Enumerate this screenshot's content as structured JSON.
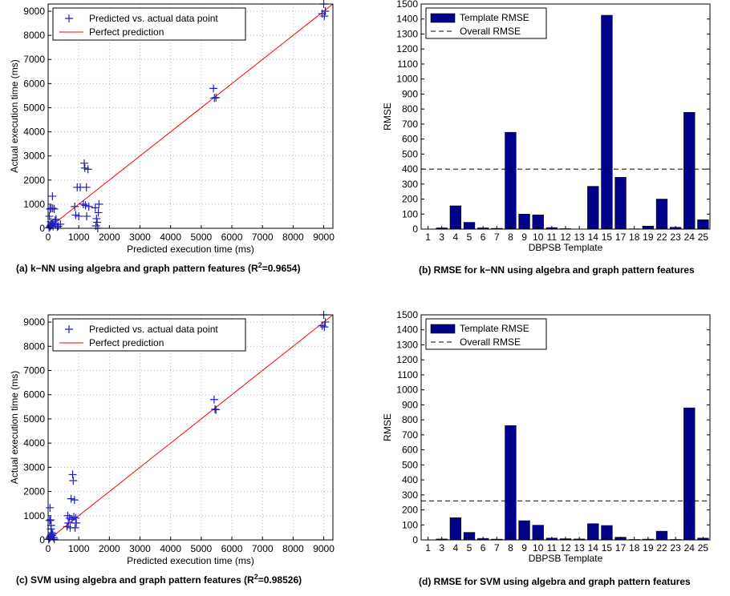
{
  "chart_data": [
    {
      "type": "scatter",
      "caption": "(a) k−NN using algebra and graph pattern features (R",
      "caption_sup": "2",
      "caption_tail": "=0.9654)",
      "xlabel": "Predicted execution time (ms)",
      "ylabel": "Actual execution time (ms)",
      "xlim": [
        0,
        9300
      ],
      "ylim": [
        0,
        9300
      ],
      "xticks": [
        "0",
        "1000",
        "2000",
        "3000",
        "4000",
        "5000",
        "6000",
        "7000",
        "8000",
        "9000"
      ],
      "yticks": [
        "0",
        "1000",
        "2000",
        "3000",
        "4000",
        "5000",
        "6000",
        "7000",
        "8000",
        "9000"
      ],
      "grid": true,
      "legend_position": "top-left",
      "legend": [
        "Predicted vs. actual data point",
        "Perfect prediction"
      ],
      "colors": {
        "points": "#1f1fbf",
        "line": "#ff0000"
      },
      "line": [
        [
          0,
          0
        ],
        [
          9300,
          9300
        ]
      ],
      "points": [
        [
          30,
          20
        ],
        [
          60,
          60
        ],
        [
          80,
          100
        ],
        [
          100,
          130
        ],
        [
          120,
          170
        ],
        [
          150,
          220
        ],
        [
          40,
          500
        ],
        [
          60,
          800
        ],
        [
          100,
          820
        ],
        [
          150,
          830
        ],
        [
          200,
          800
        ],
        [
          140,
          1330
        ],
        [
          90,
          270
        ],
        [
          160,
          80
        ],
        [
          230,
          330
        ],
        [
          300,
          60
        ],
        [
          240,
          150
        ],
        [
          330,
          90
        ],
        [
          400,
          170
        ],
        [
          260,
          380
        ],
        [
          870,
          900
        ],
        [
          900,
          550
        ],
        [
          950,
          1700
        ],
        [
          1000,
          500
        ],
        [
          1050,
          1700
        ],
        [
          1150,
          1000
        ],
        [
          1180,
          2700
        ],
        [
          1200,
          2500
        ],
        [
          1220,
          950
        ],
        [
          1250,
          1700
        ],
        [
          1260,
          500
        ],
        [
          1300,
          2450
        ],
        [
          1330,
          900
        ],
        [
          1540,
          850
        ],
        [
          1560,
          100
        ],
        [
          1580,
          400
        ],
        [
          1600,
          250
        ],
        [
          1620,
          0
        ],
        [
          1640,
          650
        ],
        [
          1660,
          1000
        ],
        [
          5400,
          5800
        ],
        [
          5430,
          5400
        ],
        [
          5480,
          5420
        ],
        [
          8950,
          8900
        ],
        [
          9000,
          9300
        ],
        [
          9020,
          8800
        ],
        [
          9050,
          9000
        ]
      ]
    },
    {
      "type": "bar",
      "caption": "(b) RMSE for k−NN using algebra and graph pattern features",
      "xlabel": "DBPSB Template",
      "ylabel": "RMSE",
      "ylim": [
        0,
        1500
      ],
      "yticks": [
        "0",
        "100",
        "200",
        "300",
        "400",
        "500",
        "600",
        "700",
        "800",
        "900",
        "1000",
        "1100",
        "1200",
        "1300",
        "1400",
        "1500"
      ],
      "categories": [
        "1",
        "3",
        "4",
        "5",
        "6",
        "7",
        "8",
        "9",
        "10",
        "11",
        "12",
        "13",
        "14",
        "15",
        "17",
        "18",
        "19",
        "22",
        "23",
        "24",
        "25"
      ],
      "values": [
        1,
        8,
        155,
        45,
        8,
        5,
        645,
        100,
        95,
        10,
        3,
        1,
        285,
        1425,
        345,
        2,
        20,
        200,
        12,
        778,
        62
      ],
      "overall_rmse": 400,
      "legend_position": "top-left",
      "legend": [
        "Template RMSE",
        "Overall RMSE"
      ],
      "colors": {
        "bar": "#00008b",
        "overall": "#000000"
      }
    },
    {
      "type": "scatter",
      "caption": "(c) SVM using algebra and graph pattern features (R",
      "caption_sup": "2",
      "caption_tail": "=0.98526)",
      "xlabel": "Predicted execution time (ms)",
      "ylabel": "Actual execution time (ms)",
      "xlim": [
        0,
        9300
      ],
      "ylim": [
        0,
        9300
      ],
      "xticks": [
        "0",
        "1000",
        "2000",
        "3000",
        "4000",
        "5000",
        "6000",
        "7000",
        "8000",
        "9000"
      ],
      "yticks": [
        "0",
        "1000",
        "2000",
        "3000",
        "4000",
        "5000",
        "6000",
        "7000",
        "8000",
        "9000"
      ],
      "grid": true,
      "legend_position": "top-left",
      "legend": [
        "Predicted vs. actual data point",
        "Perfect prediction"
      ],
      "colors": {
        "points": "#1f1fbf",
        "line": "#ff0000"
      },
      "line": [
        [
          0,
          0
        ],
        [
          9300,
          9300
        ]
      ],
      "points": [
        [
          20,
          20
        ],
        [
          40,
          60
        ],
        [
          60,
          100
        ],
        [
          80,
          150
        ],
        [
          100,
          200
        ],
        [
          50,
          800
        ],
        [
          80,
          830
        ],
        [
          100,
          600
        ],
        [
          60,
          1330
        ],
        [
          120,
          300
        ],
        [
          150,
          250
        ],
        [
          180,
          100
        ],
        [
          200,
          30
        ],
        [
          90,
          450
        ],
        [
          130,
          180
        ],
        [
          620,
          550
        ],
        [
          640,
          1000
        ],
        [
          660,
          700
        ],
        [
          700,
          900
        ],
        [
          720,
          500
        ],
        [
          750,
          1700
        ],
        [
          780,
          850
        ],
        [
          800,
          2700
        ],
        [
          820,
          2450
        ],
        [
          840,
          950
        ],
        [
          860,
          1650
        ],
        [
          880,
          500
        ],
        [
          900,
          900
        ],
        [
          920,
          700
        ],
        [
          5420,
          5800
        ],
        [
          5450,
          5400
        ],
        [
          5480,
          5380
        ],
        [
          8950,
          8850
        ],
        [
          9000,
          9300
        ],
        [
          9020,
          8800
        ],
        [
          9050,
          9000
        ]
      ]
    },
    {
      "type": "bar",
      "caption": "(d) RMSE for SVM using algebra and graph pattern features",
      "xlabel": "DBPSB Template",
      "ylabel": "RMSE",
      "ylim": [
        0,
        1500
      ],
      "yticks": [
        "0",
        "100",
        "200",
        "300",
        "400",
        "500",
        "600",
        "700",
        "800",
        "900",
        "1000",
        "1100",
        "1200",
        "1300",
        "1400",
        "1500"
      ],
      "categories": [
        "1",
        "3",
        "4",
        "5",
        "6",
        "7",
        "8",
        "9",
        "10",
        "11",
        "12",
        "13",
        "14",
        "15",
        "17",
        "18",
        "19",
        "22",
        "23",
        "24",
        "25"
      ],
      "values": [
        1,
        6,
        148,
        50,
        10,
        5,
        762,
        128,
        98,
        12,
        8,
        6,
        108,
        96,
        18,
        3,
        5,
        58,
        3,
        880,
        12
      ],
      "overall_rmse": 260,
      "legend_position": "top-left",
      "legend": [
        "Template RMSE",
        "Overall RMSE"
      ],
      "colors": {
        "bar": "#00008b",
        "overall": "#000000"
      }
    }
  ]
}
